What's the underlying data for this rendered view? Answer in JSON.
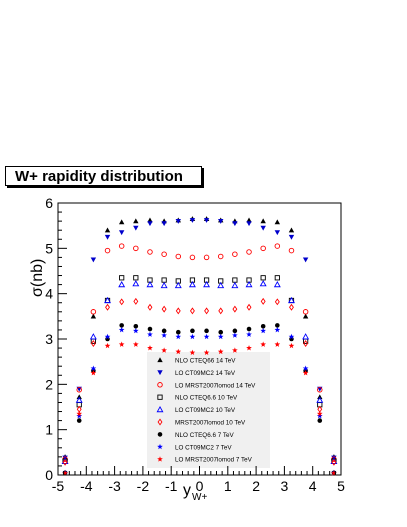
{
  "chart_data": {
    "type": "scatter",
    "title": "W+ rapidity distribution",
    "xlabel": "y",
    "xlabel_sub": "W+",
    "ylabel": "σ(nb)",
    "xlim": [
      -5,
      5
    ],
    "ylim": [
      0,
      6
    ],
    "xticks": [
      "-5",
      "-4",
      "-3",
      "-2",
      "-1",
      "0",
      "1",
      "2",
      "3",
      "4",
      "5"
    ],
    "yticks": [
      "0",
      "1",
      "2",
      "3",
      "4",
      "5",
      "6"
    ],
    "legend_position": "bottom-center",
    "grid": false,
    "x": [
      -4.75,
      -4.25,
      -3.75,
      -3.25,
      -2.75,
      -2.25,
      -1.75,
      -1.25,
      -0.75,
      -0.25,
      0.25,
      0.75,
      1.25,
      1.75,
      2.25,
      2.75,
      3.25,
      3.75,
      4.25,
      4.75
    ],
    "series": [
      {
        "name": "NLO CTEQ66 14 TeV",
        "marker": "triangle-up-filled",
        "color": "#000000",
        "values": [
          0.4,
          1.72,
          3.5,
          5.4,
          5.58,
          5.6,
          5.62,
          5.6,
          5.62,
          5.65,
          5.65,
          5.62,
          5.6,
          5.62,
          5.6,
          5.58,
          5.4,
          3.5,
          1.72,
          0.4
        ]
      },
      {
        "name": "LO CT09MC2 14 TeV",
        "marker": "triangle-down-filled",
        "color": "#0000cc",
        "values": [
          0.38,
          1.9,
          4.75,
          5.25,
          5.35,
          5.45,
          5.55,
          5.55,
          5.6,
          5.62,
          5.62,
          5.6,
          5.55,
          5.55,
          5.45,
          5.35,
          5.25,
          4.75,
          1.9,
          0.38
        ]
      },
      {
        "name": "LO MRST2007lomod 14 TeV",
        "marker": "circle-open",
        "color": "#ff0000",
        "values": [
          0.35,
          1.88,
          3.6,
          4.95,
          5.05,
          5.0,
          4.92,
          4.87,
          4.82,
          4.8,
          4.8,
          4.82,
          4.87,
          4.92,
          5.0,
          5.05,
          4.95,
          3.6,
          1.88,
          0.35
        ]
      },
      {
        "name": "NLO CTEQ6.6 10 TeV",
        "marker": "square-open",
        "color": "#000000",
        "values": [
          0.3,
          1.55,
          2.95,
          3.85,
          4.35,
          4.35,
          4.3,
          4.3,
          4.28,
          4.3,
          4.3,
          4.28,
          4.3,
          4.3,
          4.35,
          4.35,
          3.85,
          2.95,
          1.55,
          0.3
        ]
      },
      {
        "name": "LO CT09MC2 10 TeV",
        "marker": "triangle-up-open",
        "color": "#0000ff",
        "values": [
          0.3,
          1.65,
          3.05,
          3.85,
          4.2,
          4.22,
          4.2,
          4.18,
          4.18,
          4.2,
          4.2,
          4.18,
          4.18,
          4.2,
          4.22,
          4.2,
          3.85,
          3.05,
          1.65,
          0.3
        ]
      },
      {
        "name": "MRST2007lomod 10 TeV",
        "marker": "diamond-open",
        "color": "#ff0000",
        "values": [
          0.28,
          1.45,
          2.9,
          3.7,
          3.82,
          3.83,
          3.7,
          3.66,
          3.62,
          3.62,
          3.62,
          3.62,
          3.66,
          3.7,
          3.83,
          3.82,
          3.7,
          2.9,
          1.45,
          0.28
        ]
      },
      {
        "name": "NLO CTEQ6.6 7 TeV",
        "marker": "circle-filled",
        "color": "#000000",
        "values": [
          0.05,
          1.2,
          2.3,
          3.0,
          3.3,
          3.28,
          3.22,
          3.18,
          3.15,
          3.18,
          3.18,
          3.15,
          3.18,
          3.22,
          3.28,
          3.3,
          3.0,
          2.3,
          1.2,
          0.05
        ]
      },
      {
        "name": "LO CT09MC2 7 TeV",
        "marker": "star",
        "color": "#0000ff",
        "values": [
          0.05,
          1.3,
          2.35,
          3.05,
          3.2,
          3.18,
          3.1,
          3.08,
          3.05,
          3.05,
          3.05,
          3.05,
          3.08,
          3.1,
          3.18,
          3.2,
          3.05,
          2.35,
          1.3,
          0.05
        ]
      },
      {
        "name": "LO MRST2007lomod 7 TeV",
        "marker": "star",
        "color": "#ff0000",
        "values": [
          0.04,
          1.35,
          2.25,
          2.85,
          2.88,
          2.88,
          2.8,
          2.75,
          2.72,
          2.7,
          2.7,
          2.72,
          2.75,
          2.8,
          2.88,
          2.88,
          2.85,
          2.25,
          1.35,
          0.04
        ]
      }
    ]
  }
}
